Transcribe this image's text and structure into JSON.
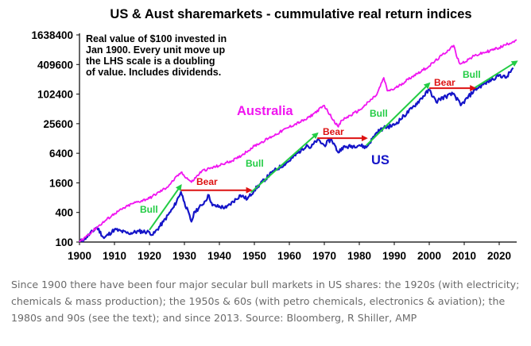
{
  "colors": {
    "us": "#1515c8",
    "australia": "#f015f0",
    "bull": "#22cc44",
    "bear": "#dd1111",
    "bear_label": "#dd1111",
    "bull_label": "#22cc44",
    "us_label": "#1515c8",
    "aus_label": "#f015f0",
    "caption": "#6b6b6b"
  },
  "chart_data": {
    "type": "line",
    "title": "US & Aust sharemarkets - cummulative real return indices",
    "annotation": "Real value of $100 invested in Jan 1900. Every unit move up the LHS scale is a doubling of value. Includes dividends.",
    "y_scale": "log",
    "ylim": [
      100,
      1638400
    ],
    "xlim": [
      1900,
      2025
    ],
    "y_ticks": [
      100,
      400,
      1600,
      6400,
      25600,
      102400,
      409600,
      1638400
    ],
    "y_tick_labels": [
      "100",
      "400",
      "1600",
      "6400",
      "25600",
      "102400",
      "409600",
      "1638400"
    ],
    "x_ticks": [
      1900,
      1910,
      1920,
      1930,
      1940,
      1950,
      1960,
      1970,
      1980,
      1990,
      2000,
      2010,
      2020
    ],
    "x_tick_labels": [
      "1900",
      "1910",
      "1920",
      "1930",
      "1940",
      "1950",
      "1960",
      "1970",
      "1980",
      "1990",
      "2000",
      "2010",
      "2020"
    ],
    "series": [
      {
        "name": "US",
        "x": [
          1900,
          1902,
          1905,
          1907,
          1910,
          1914,
          1917,
          1920,
          1921,
          1924,
          1927,
          1929,
          1930,
          1932,
          1933,
          1935,
          1937,
          1938,
          1942,
          1946,
          1948,
          1950,
          1955,
          1960,
          1965,
          1966,
          1968,
          1970,
          1972,
          1974,
          1975,
          1980,
          1982,
          1985,
          1987,
          1990,
          1995,
          2000,
          2002,
          2003,
          2007,
          2009,
          2013,
          2016,
          2020,
          2022,
          2024
        ],
        "y": [
          100,
          125,
          200,
          120,
          180,
          150,
          165,
          160,
          140,
          260,
          520,
          1050,
          650,
          260,
          420,
          560,
          900,
          550,
          500,
          900,
          750,
          1150,
          2600,
          4500,
          9500,
          8200,
          12000,
          9300,
          12500,
          6600,
          8300,
          9400,
          8400,
          17000,
          21000,
          24000,
          52000,
          125000,
          70000,
          82000,
          105000,
          60000,
          125000,
          170000,
          250000,
          220000,
          350000
        ]
      },
      {
        "name": "Australia",
        "x": [
          1900,
          1905,
          1910,
          1915,
          1920,
          1925,
          1929,
          1932,
          1935,
          1940,
          1945,
          1950,
          1955,
          1960,
          1965,
          1970,
          1971,
          1974,
          1975,
          1980,
          1981,
          1985,
          1987,
          1988,
          1990,
          1995,
          2000,
          2007,
          2008,
          2009,
          2013,
          2020,
          2025
        ],
        "y": [
          100,
          200,
          380,
          600,
          780,
          1300,
          2600,
          1650,
          2800,
          3600,
          5000,
          9000,
          14000,
          22000,
          32000,
          60000,
          45000,
          22000,
          30000,
          48000,
          55000,
          100000,
          220000,
          120000,
          130000,
          230000,
          380000,
          1000000,
          550000,
          420000,
          620000,
          900000,
          1300000
        ]
      }
    ],
    "bull_markets": [
      [
        1920,
        1929
      ],
      [
        1949,
        1968
      ],
      [
        1982,
        2000
      ],
      [
        2013,
        2025
      ]
    ],
    "bear_markets": [
      [
        1929,
        1949
      ],
      [
        1968,
        1982
      ],
      [
        2000,
        2013
      ]
    ],
    "labels": {
      "australia": "Australia",
      "us": "US",
      "bull": "Bull",
      "bear": "Bear"
    }
  },
  "caption": "Since 1900 there have been four major secular bull markets in US shares: the 1920s (with electricity; chemicals & mass production); the 1950s & 60s (with petro chemicals, electronics & aviation); the 1980s and 90s (see the text); and since 2013. Source: Bloomberg, R Shiller, AMP"
}
